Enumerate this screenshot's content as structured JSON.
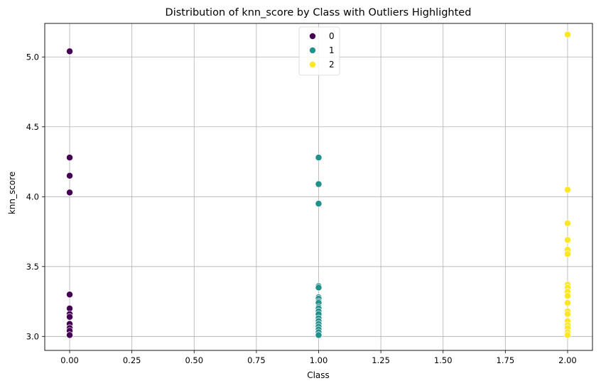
{
  "chart_data": {
    "type": "scatter",
    "title": "Distribution of knn_score by Class with Outliers Highlighted",
    "xlabel": "Class",
    "ylabel": "knn_score",
    "xlim": [
      -0.1,
      2.1
    ],
    "ylim": [
      2.9,
      5.24
    ],
    "xticks": [
      0.0,
      0.25,
      0.5,
      0.75,
      1.0,
      1.25,
      1.5,
      1.75,
      2.0
    ],
    "xtick_labels": [
      "0.00",
      "0.25",
      "0.50",
      "0.75",
      "1.00",
      "1.25",
      "1.50",
      "1.75",
      "2.00"
    ],
    "yticks": [
      3.0,
      3.5,
      4.0,
      4.5,
      5.0
    ],
    "ytick_labels": [
      "3.0",
      "3.5",
      "4.0",
      "4.5",
      "5.0"
    ],
    "grid": true,
    "legend_position": "top-center",
    "series": [
      {
        "name": "0",
        "color": "#440154",
        "x": 0,
        "values": [
          5.04,
          4.28,
          4.15,
          4.03,
          3.3,
          3.2,
          3.16,
          3.14,
          3.09,
          3.06,
          3.04,
          3.01
        ]
      },
      {
        "name": "1",
        "color": "#21918c",
        "x": 1,
        "values": [
          4.28,
          4.09,
          3.95,
          3.36,
          3.35,
          3.28,
          3.27,
          3.25,
          3.24,
          3.21,
          3.2,
          3.18,
          3.16,
          3.13,
          3.11,
          3.09,
          3.07,
          3.05,
          3.03,
          3.01
        ]
      },
      {
        "name": "2",
        "color": "#fde725",
        "x": 2,
        "values": [
          5.16,
          4.05,
          3.81,
          3.69,
          3.62,
          3.59,
          3.37,
          3.35,
          3.32,
          3.29,
          3.24,
          3.18,
          3.16,
          3.11,
          3.08,
          3.06,
          3.03,
          3.01
        ]
      }
    ]
  }
}
